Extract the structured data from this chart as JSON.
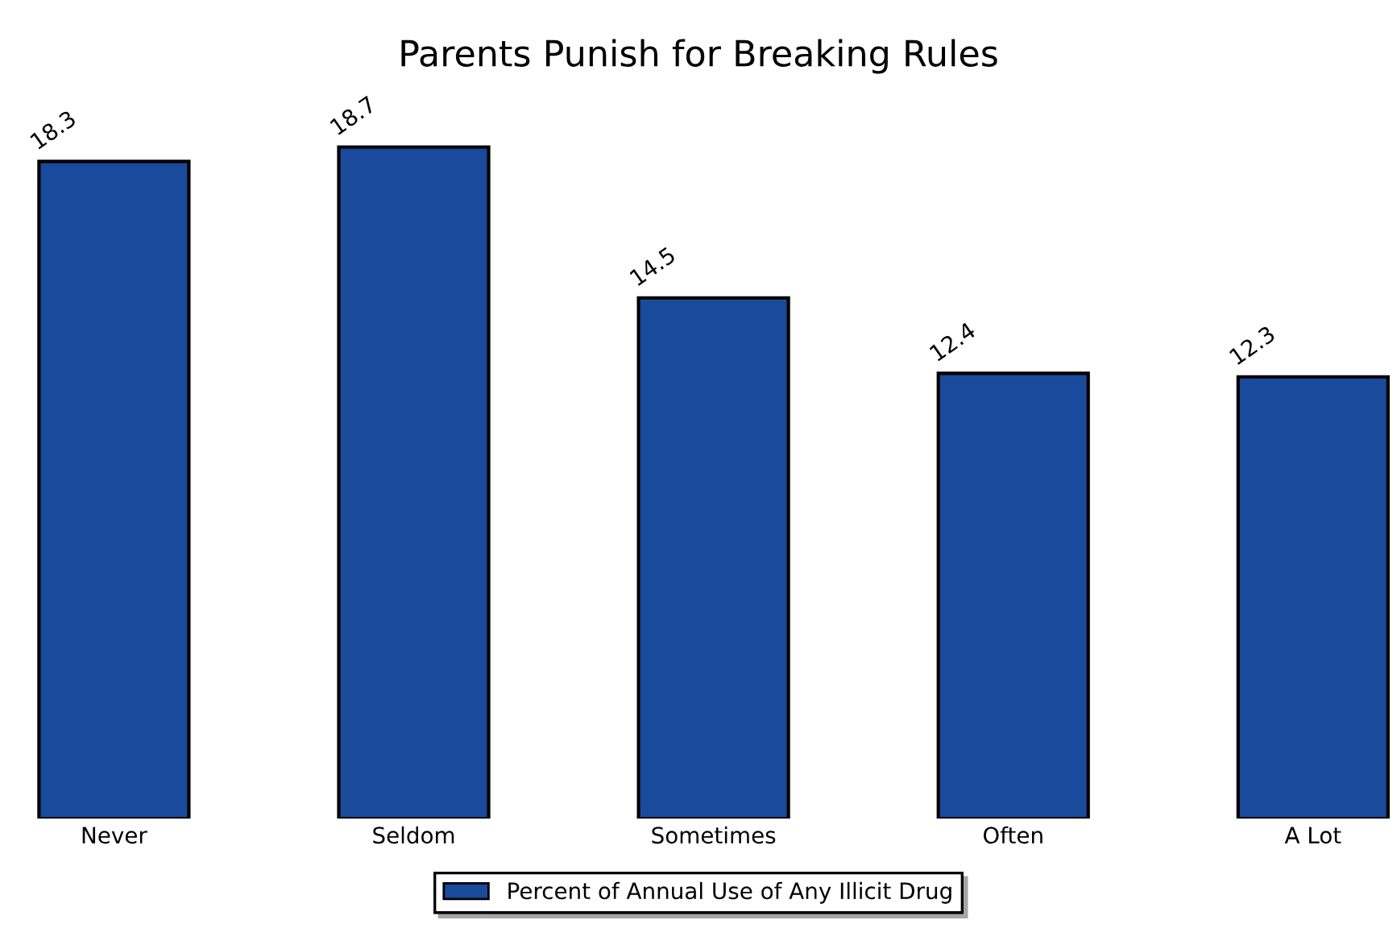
{
  "chart_data": {
    "type": "bar",
    "title": "Parents Punish for Breaking Rules",
    "categories": [
      "Never",
      "Seldom",
      "Sometimes",
      "Often",
      "A Lot"
    ],
    "series": [
      {
        "name": "Percent of Annual Use of Any Illicit Drug",
        "color": "#1a4a9c",
        "values": [
          18.3,
          18.7,
          14.5,
          12.4,
          12.3
        ]
      }
    ],
    "data_labels": true,
    "legend": "bottom",
    "grid": false,
    "tick_labels": "x"
  }
}
